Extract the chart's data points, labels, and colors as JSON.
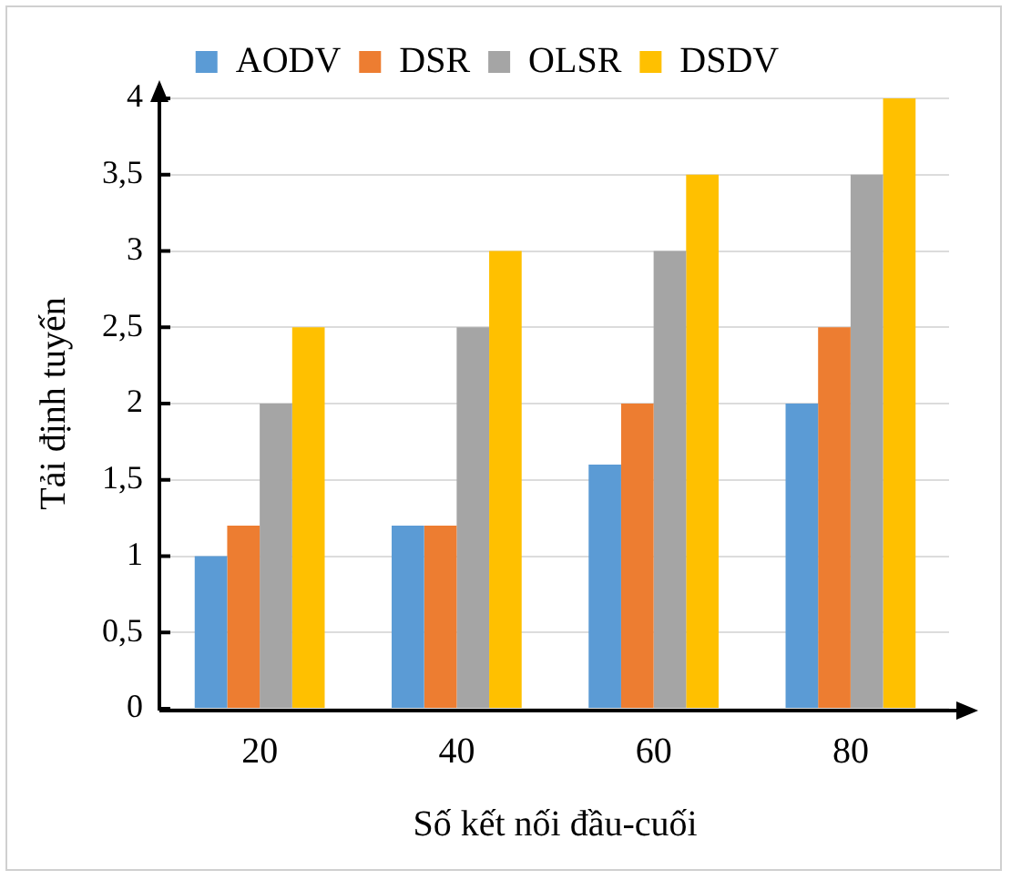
{
  "chart_data": {
    "type": "bar",
    "xlabel": "Số kết nối đầu-cuối",
    "ylabel": "Tải định tuyến",
    "categories": [
      "20",
      "40",
      "60",
      "80"
    ],
    "series": [
      {
        "name": "AODV",
        "color": "#5b9bd5",
        "values": [
          1,
          1.2,
          1.6,
          2
        ]
      },
      {
        "name": "DSR",
        "color": "#ed7d31",
        "values": [
          1.2,
          1.2,
          2,
          2.5
        ]
      },
      {
        "name": "OLSR",
        "color": "#a5a5a5",
        "values": [
          2,
          2.5,
          3,
          3.5
        ]
      },
      {
        "name": "DSDV",
        "color": "#ffc000",
        "values": [
          2.5,
          3,
          3.5,
          4
        ]
      }
    ],
    "ylim": [
      0,
      4
    ],
    "yticks": [
      0,
      {
        "value": 0.5,
        "label": "0,5"
      },
      1,
      {
        "value": 1.5,
        "label": "1,5"
      },
      2,
      {
        "value": 2.5,
        "label": "2,5"
      },
      3,
      {
        "value": 3.5,
        "label": "3,5"
      },
      4
    ],
    "grid": "y",
    "legend": "top"
  }
}
